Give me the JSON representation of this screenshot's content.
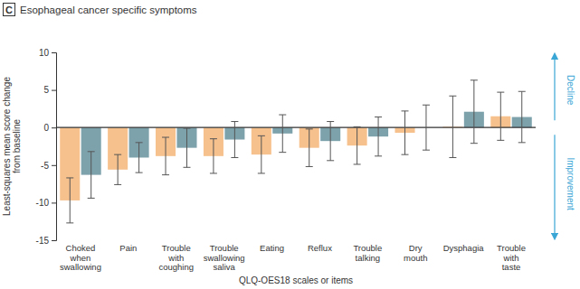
{
  "chart_data": {
    "type": "bar",
    "panel_label": "C",
    "title": "Esophageal cancer specific symptoms",
    "y_label": "Least-squares mean score change from baseline",
    "x_label": "QLQ-OES18 scales or items",
    "annotations": [
      "Decline",
      "Improvement"
    ],
    "categories": [
      "Choked when swallowing",
      "Pain",
      "Trouble with coughing",
      "Trouble swallowing saliva",
      "Eating",
      "Reflux",
      "Trouble talking",
      "Dry mouth",
      "Dysphagia",
      "Trouble with taste"
    ],
    "series": [
      {
        "color": "#f7c18d",
        "values": [
          -9.7,
          -5.6,
          -3.8,
          -3.8,
          -3.6,
          -2.7,
          -2.4,
          -0.7,
          0.1,
          1.5
        ],
        "errors": [
          3.0,
          2.0,
          2.5,
          2.3,
          2.5,
          2.5,
          2.5,
          2.9,
          4.1,
          3.2
        ]
      },
      {
        "color": "#7ea2ac",
        "values": [
          -6.3,
          -4.0,
          -2.7,
          -1.6,
          -0.8,
          -1.8,
          -1.2,
          0.0,
          2.1,
          1.4
        ],
        "errors": [
          3.1,
          2.0,
          2.6,
          2.4,
          2.5,
          2.6,
          2.6,
          3.0,
          4.2,
          3.4
        ]
      }
    ],
    "ylim": [
      -15,
      10
    ],
    "yticks": [
      -15,
      -10,
      -5,
      0,
      5,
      10
    ]
  }
}
